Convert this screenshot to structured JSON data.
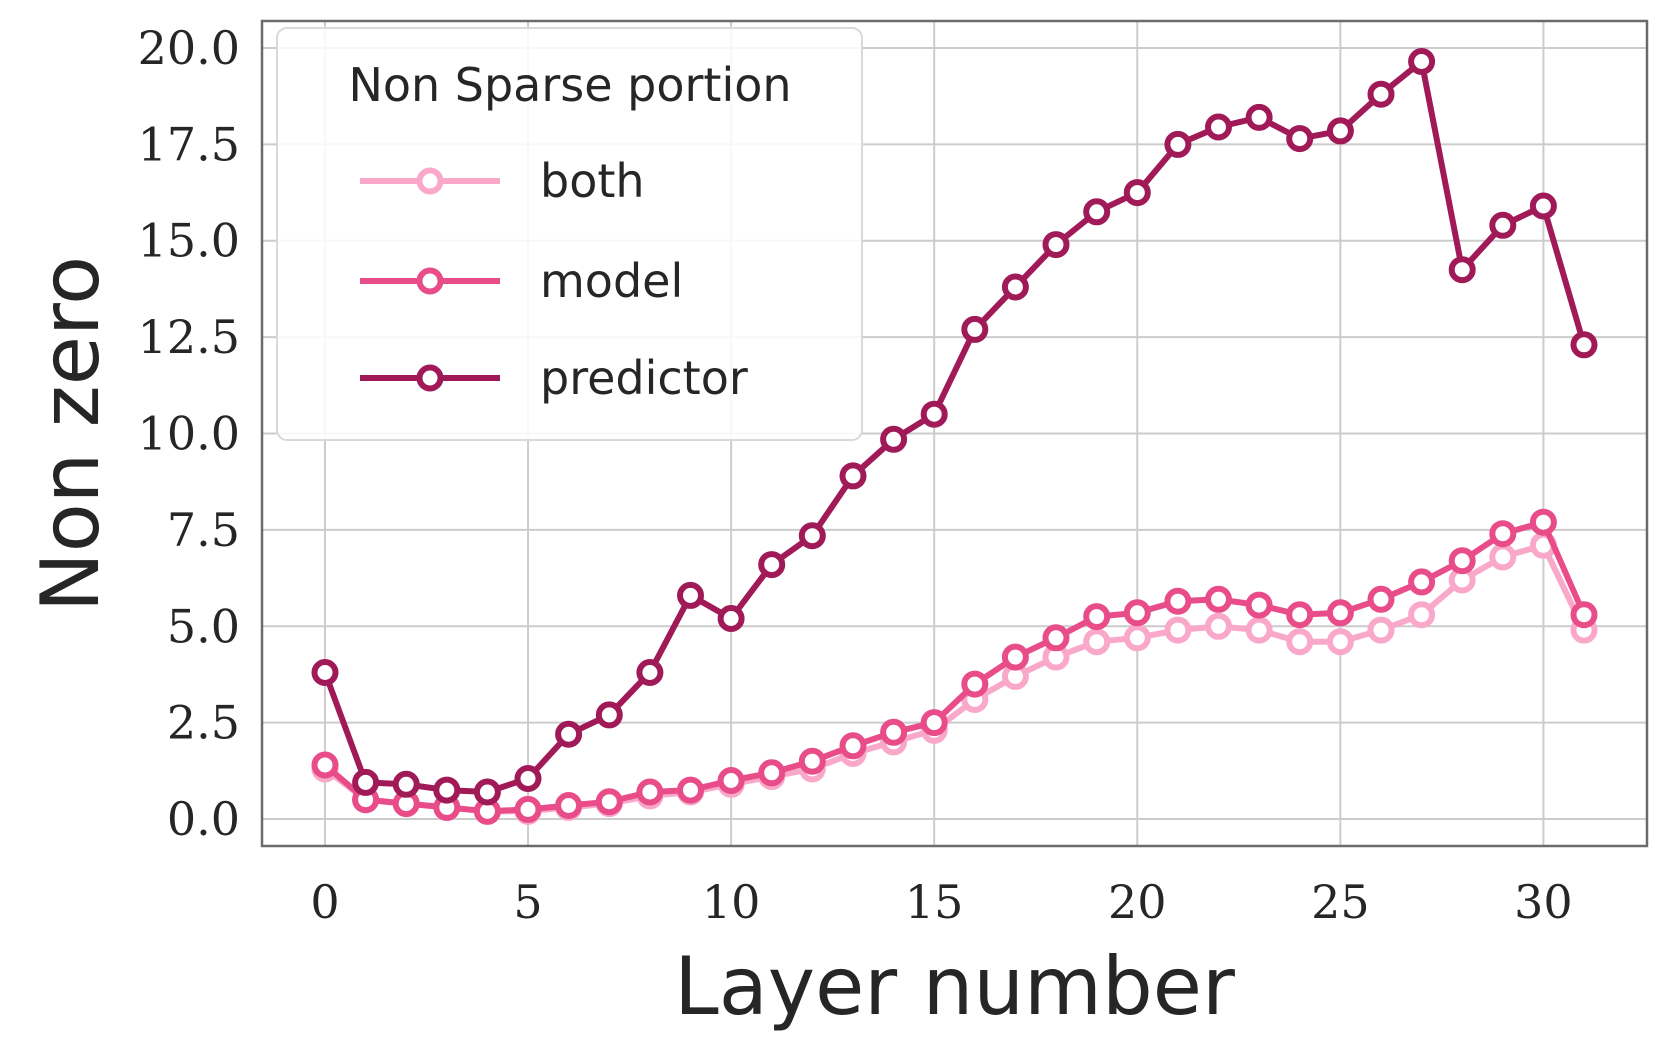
{
  "chart_data": {
    "type": "line",
    "xlabel": "Layer number",
    "ylabel": "Non zero",
    "xlim": [
      -1.55,
      32.55
    ],
    "ylim": [
      -0.7,
      20.7
    ],
    "x_ticks": [
      "0",
      "5",
      "10",
      "15",
      "20",
      "25",
      "30"
    ],
    "y_ticks": [
      "0.0",
      "2.5",
      "5.0",
      "7.5",
      "10.0",
      "12.5",
      "15.0",
      "17.5",
      "20.0"
    ],
    "grid": true,
    "legend": {
      "title": "Non Sparse portion",
      "placement": "top-left"
    },
    "x": [
      0,
      1,
      2,
      3,
      4,
      5,
      6,
      7,
      8,
      9,
      10,
      11,
      12,
      13,
      14,
      15,
      16,
      17,
      18,
      19,
      20,
      21,
      22,
      23,
      24,
      25,
      26,
      27,
      28,
      29,
      30,
      31
    ],
    "series": [
      {
        "name": "both",
        "color": "#f9a8c9",
        "values": [
          1.3,
          0.5,
          0.4,
          0.3,
          0.2,
          0.2,
          0.3,
          0.4,
          0.6,
          0.7,
          0.9,
          1.1,
          1.3,
          1.7,
          2.0,
          2.3,
          3.1,
          3.7,
          4.2,
          4.6,
          4.7,
          4.9,
          5.0,
          4.9,
          4.6,
          4.6,
          4.9,
          5.3,
          6.2,
          6.8,
          7.1,
          4.9
        ]
      },
      {
        "name": "model",
        "color": "#e84d8a",
        "values": [
          1.4,
          0.5,
          0.4,
          0.3,
          0.2,
          0.25,
          0.35,
          0.45,
          0.7,
          0.75,
          1.0,
          1.2,
          1.5,
          1.9,
          2.25,
          2.5,
          3.5,
          4.2,
          4.7,
          5.25,
          5.35,
          5.65,
          5.7,
          5.55,
          5.3,
          5.35,
          5.7,
          6.15,
          6.7,
          7.4,
          7.7,
          5.3
        ]
      },
      {
        "name": "predictor",
        "color": "#a01a58",
        "values": [
          3.8,
          0.95,
          0.9,
          0.75,
          0.7,
          1.05,
          2.2,
          2.7,
          3.8,
          5.8,
          5.2,
          6.6,
          7.35,
          8.9,
          9.85,
          10.5,
          12.7,
          13.8,
          14.9,
          15.75,
          16.25,
          17.5,
          17.95,
          18.2,
          17.65,
          17.85,
          18.8,
          19.65,
          14.25,
          15.4,
          15.9,
          12.3
        ]
      }
    ]
  }
}
